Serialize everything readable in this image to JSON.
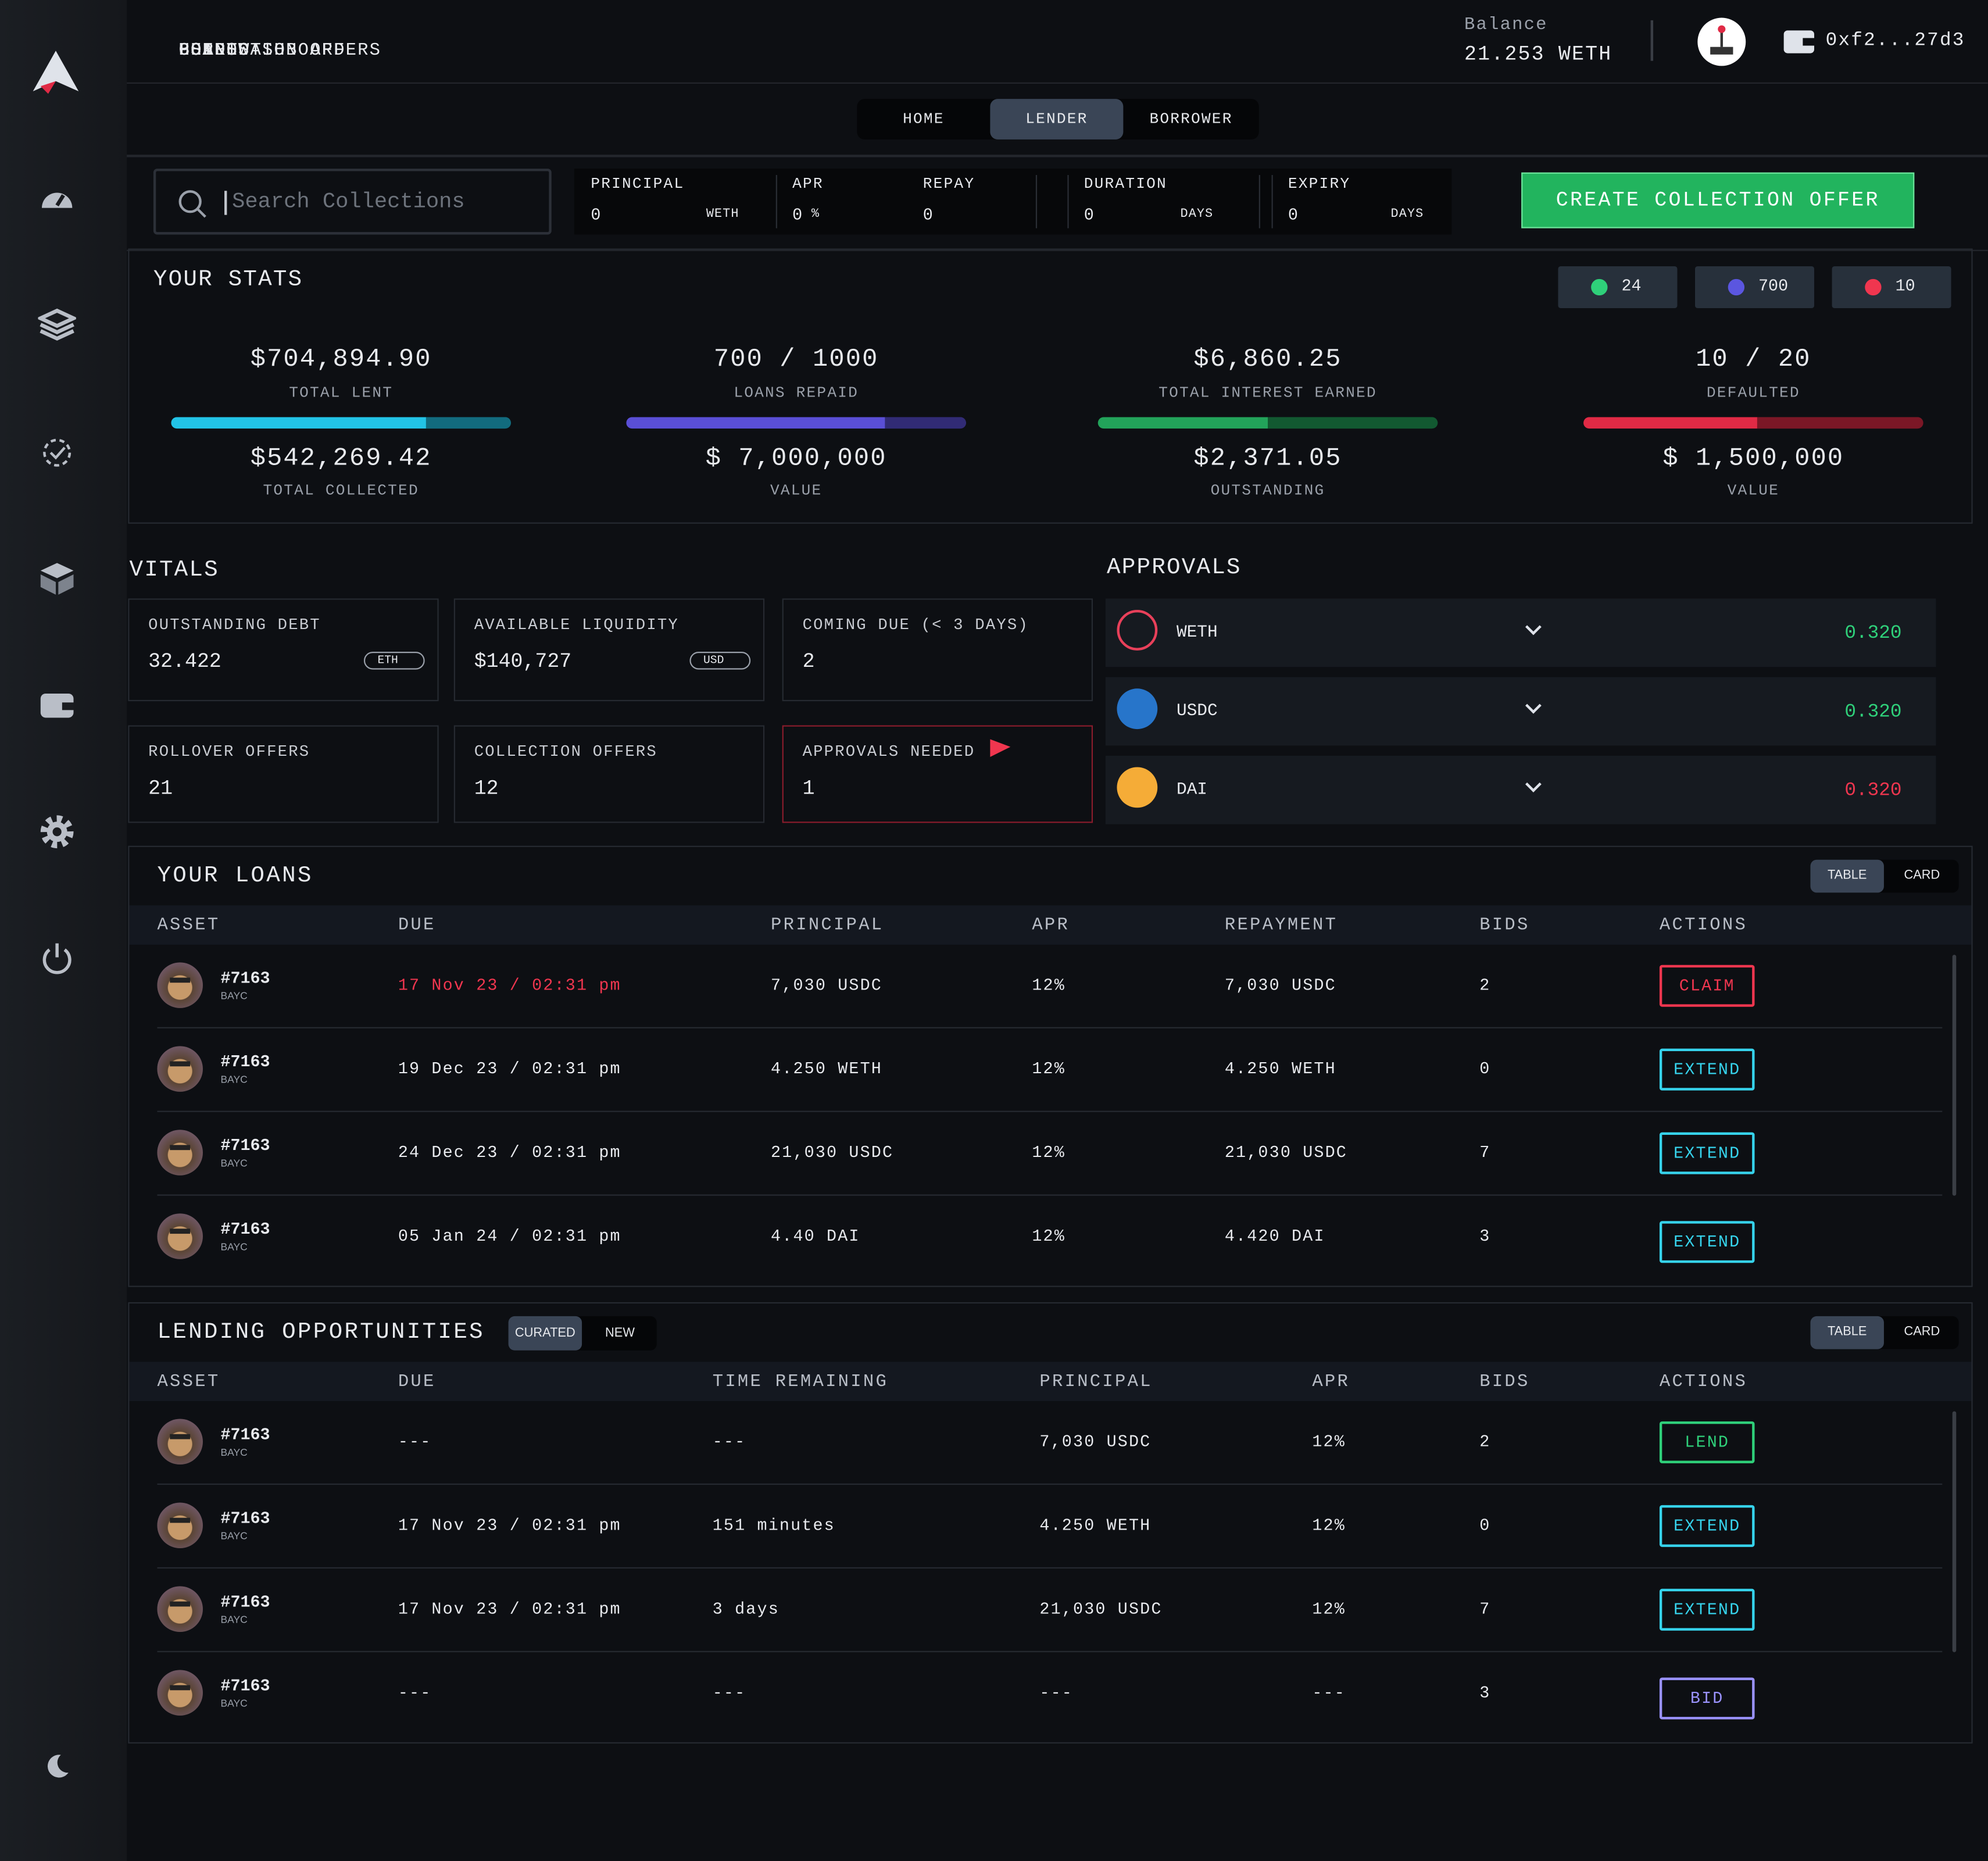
{
  "nav": [
    "BORROW",
    "LEND",
    "LOANS",
    "COLLECTION OFFERS",
    "USER DASHBOARD",
    "POINTS"
  ],
  "balance": {
    "label": "Balance",
    "value": "21.253 WETH"
  },
  "wallet": "0xf2...27d3",
  "tabs": [
    "HOME",
    "LENDER",
    "BORROWER"
  ],
  "search_placeholder": "Search Collections",
  "offer_fields": [
    {
      "label": "PRINCIPAL",
      "value": "0",
      "unit": "WETH"
    },
    {
      "label": "APR",
      "value": "0",
      "unit": "%"
    },
    {
      "label": "REPAY",
      "value": "0"
    },
    {
      "label": "DURATION",
      "value": "0",
      "unit": "DAYS"
    },
    {
      "label": "EXPIRY",
      "value": "0",
      "unit": "DAYS"
    }
  ],
  "create_button": "CREATE COLLECTION OFFER",
  "stats": {
    "title": "YOUR STATS",
    "badges": [
      {
        "value": "24",
        "color": "#2fd07a"
      },
      {
        "value": "700",
        "color": "#5b56e0"
      },
      {
        "value": "10",
        "color": "#f0364f"
      }
    ],
    "cards": [
      {
        "top_value": "$704,894.90",
        "top_label": "TOTAL LENT",
        "bottom_value": "$542,269.42",
        "bottom_label": "TOTAL COLLECTED",
        "color": "#22c3e6"
      },
      {
        "top_value": "700 / 1000",
        "top_label": "LOANS REPAID",
        "bottom_value": "$ 7,000,000",
        "bottom_label": "VALUE",
        "color": "#5a4fd6"
      },
      {
        "top_value": "$6,860.25",
        "top_label": "TOTAL INTEREST EARNED",
        "bottom_value": "$2,371.05",
        "bottom_label": "OUTSTANDING",
        "color": "#22a35a"
      },
      {
        "top_value": "10 / 20",
        "top_label": "DEFAULTED",
        "bottom_value": "$ 1,500,000",
        "bottom_label": "VALUE",
        "color": "#e02a45"
      }
    ]
  },
  "vitals": {
    "title": "VITALS",
    "cards": [
      {
        "label": "OUTSTANDING DEBT",
        "value": "32.422",
        "unit": "ETH"
      },
      {
        "label": "AVAILABLE LIQUIDITY",
        "value": "$140,727",
        "unit": "USD"
      },
      {
        "label": "COMING DUE (< 3 DAYS)",
        "value": "2"
      },
      {
        "label": "ROLLOVER OFFERS",
        "value": "21"
      },
      {
        "label": "COLLECTION OFFERS",
        "value": "12"
      },
      {
        "label": "APPROVALS NEEDED",
        "value": "1"
      }
    ]
  },
  "approvals": {
    "title": "APPROVALS",
    "items": [
      {
        "token": "WETH",
        "value": "0.320",
        "color": "#2fd07a"
      },
      {
        "token": "USDC",
        "value": "0.320",
        "color": "#2fd07a"
      },
      {
        "token": "DAI",
        "value": "0.320",
        "color": "#f0364f"
      }
    ]
  },
  "loans": {
    "title": "YOUR LOANS",
    "toggle": [
      "TABLE",
      "CARD"
    ],
    "columns": [
      "ASSET",
      "DUE",
      "PRINCIPAL",
      "APR",
      "REPAYMENT",
      "BIDS",
      "ACTIONS"
    ],
    "rows": [
      {
        "id": "#7163",
        "collection": "BAYC",
        "cells": [
          "17 Nov 23 / 02:31 pm",
          "7,030 USDC",
          "12%",
          "7,030 USDC",
          "2"
        ],
        "due_color": "#f0364f",
        "action": "CLAIM",
        "action_color": "#f0364f"
      },
      {
        "id": "#7163",
        "collection": "BAYC",
        "cells": [
          "19 Dec 23 / 02:31 pm",
          "4.250 WETH",
          "12%",
          "4.250 WETH",
          "0"
        ],
        "action": "EXTEND",
        "action_color": "#36d3ec"
      },
      {
        "id": "#7163",
        "collection": "BAYC",
        "cells": [
          "24 Dec 23 / 02:31 pm",
          "21,030 USDC",
          "12%",
          "21,030 USDC",
          "7"
        ],
        "action": "EXTEND",
        "action_color": "#36d3ec"
      },
      {
        "id": "#7163",
        "collection": "BAYC",
        "cells": [
          "05 Jan 24 / 02:31 pm",
          "4.40 DAI",
          "12%",
          "4.420 DAI",
          "3"
        ],
        "action": "EXTEND",
        "action_color": "#36d3ec"
      }
    ]
  },
  "opportunities": {
    "title": "LENDING OPPORTUNITIES",
    "filter": [
      "CURATED",
      "NEW"
    ],
    "toggle": [
      "TABLE",
      "CARD"
    ],
    "columns": [
      "ASSET",
      "DUE",
      "TIME REMAINING",
      "PRINCIPAL",
      "APR",
      "BIDS",
      "ACTIONS"
    ],
    "rows": [
      {
        "id": "#7163",
        "collection": "BAYC",
        "cells": [
          "---",
          "---",
          "7,030 USDC",
          "12%",
          "2"
        ],
        "action": "LEND",
        "action_color": "#2fd07a"
      },
      {
        "id": "#7163",
        "collection": "BAYC",
        "cells": [
          "17 Nov 23 / 02:31 pm",
          "151 minutes",
          "4.250 WETH",
          "12%",
          "0"
        ],
        "action": "EXTEND",
        "action_color": "#36d3ec"
      },
      {
        "id": "#7163",
        "collection": "BAYC",
        "cells": [
          "17 Nov 23 / 02:31 pm",
          "3 days",
          "21,030 USDC",
          "12%",
          "7"
        ],
        "action": "EXTEND",
        "action_color": "#36d3ec"
      },
      {
        "id": "#7163",
        "collection": "BAYC",
        "cells": [
          "---",
          "---",
          "---",
          "---",
          "3"
        ],
        "action": "BID",
        "action_color": "#9a92ff"
      }
    ]
  }
}
